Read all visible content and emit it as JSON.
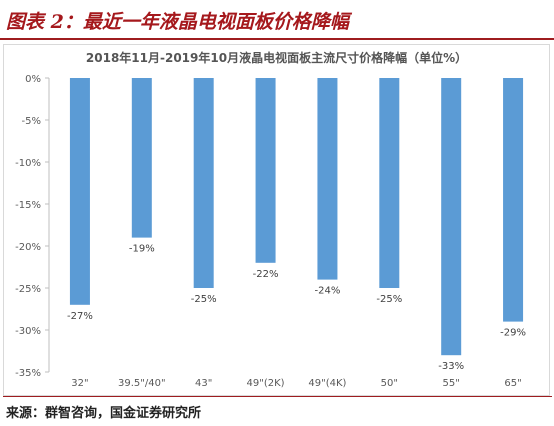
{
  "header": {
    "title": "图表 2：最近一年液晶电视面板价格降幅"
  },
  "source": "来源：群智咨询，国金证券研究所",
  "colors": {
    "bar": "#5b9bd5",
    "accent": "#a5181c"
  },
  "chart_data": {
    "type": "bar",
    "title": "2018年11月-2019年10月液晶电视面板主流尺寸价格降幅（单位%）",
    "categories": [
      "32\"",
      "39.5\"/40\"",
      "43\"",
      "49\"(2K)",
      "49\"(4K)",
      "50\"",
      "55\"",
      "65\""
    ],
    "values": [
      -27,
      -19,
      -25,
      -22,
      -24,
      -25,
      -33,
      -29
    ],
    "labels": [
      "-27%",
      "-19%",
      "-25%",
      "-22%",
      "-24%",
      "-25%",
      "-33%",
      "-29%"
    ],
    "yticks": [
      "0%",
      "-5%",
      "-10%",
      "-15%",
      "-20%",
      "-25%",
      "-30%",
      "-35%"
    ],
    "ylim": [
      -35,
      0
    ],
    "grid": false,
    "legend": "none"
  }
}
